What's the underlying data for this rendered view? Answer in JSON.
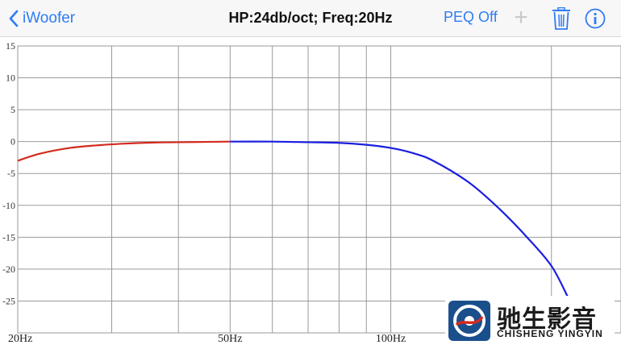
{
  "nav": {
    "back_label": "iWoofer",
    "title": "HP:24db/oct; Freq:20Hz",
    "peq_label": "PEQ Off",
    "add_icon": "plus-icon",
    "delete_icon": "trash-icon",
    "info_icon": "info-icon",
    "accent_color": "#2f7cf6"
  },
  "chart_data": {
    "type": "line",
    "title": "",
    "xlabel": "",
    "ylabel": "",
    "x_scale": "log",
    "ylim": [
      -30,
      15
    ],
    "y_ticks": [
      15,
      10,
      5,
      0,
      -5,
      -10,
      -15,
      -20,
      -25
    ],
    "x_tick_labels": [
      "20Hz",
      "50Hz",
      "100Hz"
    ],
    "x_tick_values": [
      20,
      50,
      100
    ],
    "grid": true,
    "series": [
      {
        "color": "#d42a1e",
        "x": [
          20,
          22,
          25,
          28,
          32,
          36,
          40,
          45,
          50
        ],
        "y": [
          -3.0,
          -1.9,
          -1.0,
          -0.6,
          -0.3,
          -0.15,
          -0.1,
          -0.05,
          0
        ]
      },
      {
        "color": "#1a1ee0",
        "x": [
          50,
          60,
          70,
          80,
          90,
          100,
          110,
          120,
          140,
          160,
          180,
          200,
          215
        ],
        "y": [
          0,
          0,
          -0.1,
          -0.2,
          -0.5,
          -1.0,
          -1.8,
          -3.0,
          -6.4,
          -10.6,
          -15.0,
          -19.5,
          -24.5
        ]
      }
    ]
  },
  "watermark": {
    "brand_cn": "驰生影音",
    "brand_en": "CHISHENG YINGYIN",
    "color": "#1a4f8c"
  }
}
